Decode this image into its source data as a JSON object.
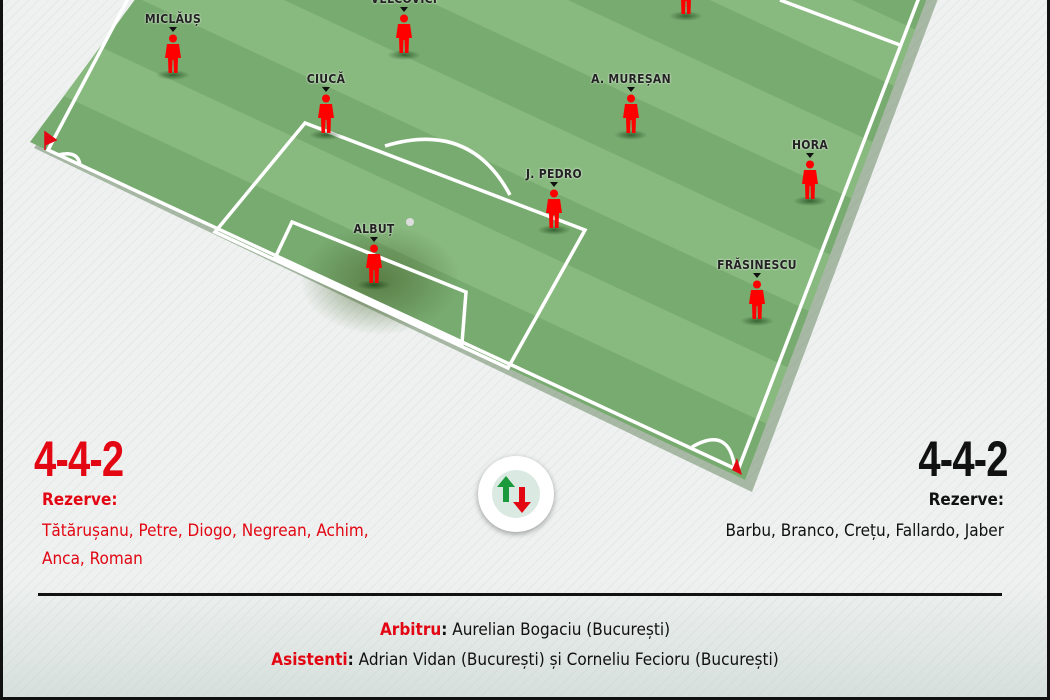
{
  "home": {
    "formation": "4-4-2",
    "reserves_label": "Rezerve:",
    "reserves_line1": "Tătărușanu, Petre, Diogo, Negrean, Achim,",
    "reserves_line2": "Anca, Roman",
    "color": "#e30613"
  },
  "away": {
    "formation": "4-4-2",
    "reserves_label": "Rezerve:",
    "reserves": "Barbu, Branco, Crețu, Fallardo, Jaber",
    "color": "#111111"
  },
  "players": [
    {
      "name": "MICLĂUȘ"
    },
    {
      "name": "VELCOVICI"
    },
    {
      "name": ""
    },
    {
      "name": "CIUCĂ"
    },
    {
      "name": "A. MUREȘAN"
    },
    {
      "name": "HORA"
    },
    {
      "name": "J. PEDRO"
    },
    {
      "name": "ALBUȚ"
    },
    {
      "name": "FRĂSINESCU"
    }
  ],
  "swap_icon": "swap-arrows-icon",
  "officials": {
    "referee_label": "Arbitru",
    "referee": "Aurelian Bogaciu (București)",
    "assistants_label": "Asistenti",
    "assistants": "Adrian Vidan (București) și Corneliu Fecioru (București)"
  }
}
